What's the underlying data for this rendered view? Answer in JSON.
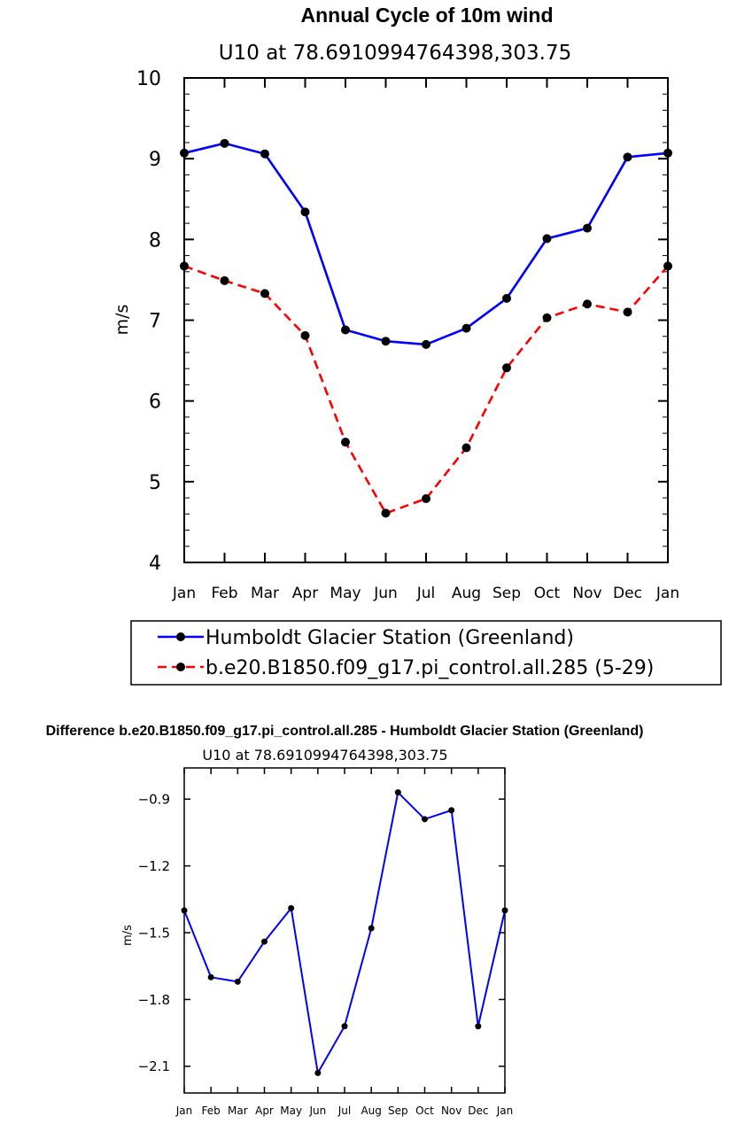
{
  "chart_data": [
    {
      "type": "line",
      "title": "Annual Cycle of 10m wind",
      "subtitle": "U10 at 78.6910994764398,303.75",
      "xlabel": "",
      "ylabel": "m/s",
      "categories": [
        "Jan",
        "Feb",
        "Mar",
        "Apr",
        "May",
        "Jun",
        "Jul",
        "Aug",
        "Sep",
        "Oct",
        "Nov",
        "Dec",
        "Jan"
      ],
      "ylim": [
        4,
        10
      ],
      "yticks": [
        "4",
        "5",
        "6",
        "7",
        "8",
        "9",
        "10"
      ],
      "grid": false,
      "legend_position": "bottom",
      "series": [
        {
          "name": "Humboldt Glacier Station (Greenland)",
          "color": "#0000ff",
          "dash": "solid",
          "values": [
            9.07,
            9.19,
            9.06,
            8.34,
            6.88,
            6.74,
            6.7,
            6.9,
            7.27,
            8.01,
            8.14,
            9.02,
            9.07
          ]
        },
        {
          "name": "b.e20.B1850.f09_g17.pi_control.all.285 (5-29)",
          "color": "#ff0000",
          "dash": "dashed",
          "values": [
            7.67,
            7.49,
            7.33,
            6.81,
            5.49,
            4.61,
            4.79,
            5.42,
            6.41,
            7.03,
            7.2,
            7.1,
            7.67
          ]
        }
      ]
    },
    {
      "type": "line",
      "title": "Difference b.e20.B1850.f09_g17.pi_control.all.285 - Humboldt Glacier Station (Greenland)",
      "subtitle": "U10 at 78.6910994764398,303.75",
      "xlabel": "",
      "ylabel": "m/s",
      "categories": [
        "Jan",
        "Feb",
        "Mar",
        "Apr",
        "May",
        "Jun",
        "Jul",
        "Aug",
        "Sep",
        "Oct",
        "Nov",
        "Dec",
        "Jan"
      ],
      "ylim": [
        -2.22,
        -0.76
      ],
      "yticks": [
        "-2.1",
        "-1.8",
        "-1.5",
        "-1.2",
        "-0.9"
      ],
      "grid": false,
      "series": [
        {
          "color": "#0000ff",
          "values": [
            -1.4,
            -1.7,
            -1.72,
            -1.54,
            -1.39,
            -2.13,
            -1.92,
            -1.48,
            -0.87,
            -0.99,
            -0.95,
            -1.92,
            -1.4
          ]
        }
      ]
    }
  ]
}
